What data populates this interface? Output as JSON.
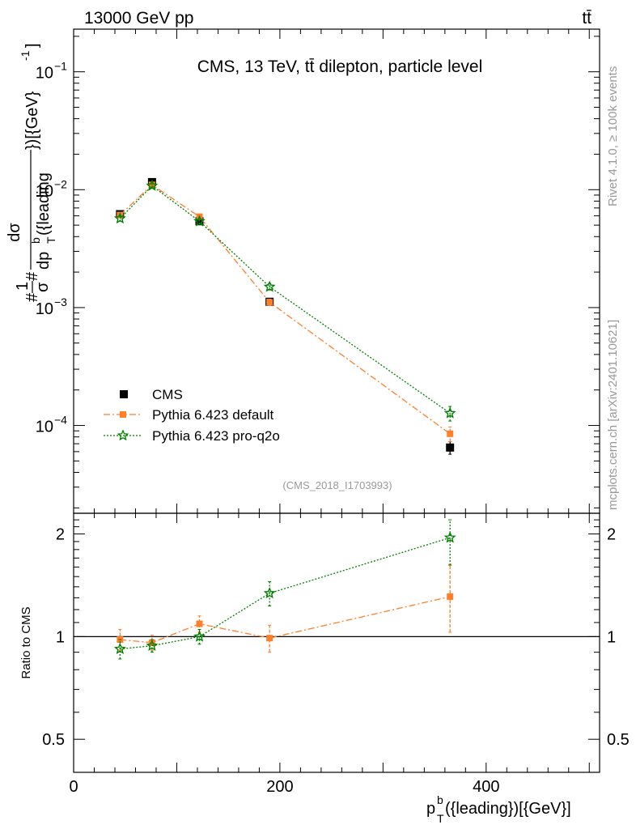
{
  "header": {
    "beam": "13000 GeV pp",
    "process": "tt̄",
    "analysis_title": "CMS, 13 TeV, tt̄ dilepton, particle level",
    "analysis_id": "(CMS_2018_I1703993)",
    "side_rivet": "Rivet 4.1.0, ≥ 100k events",
    "side_mcplots": "mcplots.cern.ch [arXiv:2401.10621]"
  },
  "colors": {
    "cms": "#000000",
    "default": "#ff7f2a",
    "proq2o": "#008000"
  },
  "chart_data": [
    {
      "type": "scatter",
      "panel": "main",
      "ylabel": "#1/σ# dσ / dp_T^b({leading}) [{GeV}^-1]",
      "ylabel_parts": {
        "prefix": "#",
        "one": "1",
        "sigma": "σ",
        "hash": "#",
        "num": "dσ",
        "den": "dp",
        "den_sup": "b",
        "den_sub": "T",
        "den_rest": "({leading",
        "suffix": "})[{GeV}",
        "suffix_sup": "-1",
        "suffix_end": "]"
      },
      "yscale": "log",
      "xlim": [
        0,
        510
      ],
      "ylim": [
        1.8e-05,
        0.23
      ],
      "y_ticks": [
        {
          "value": 0.1,
          "mantissa": "10",
          "exp": "−1"
        },
        {
          "value": 0.01,
          "mantissa": "10",
          "exp": "−2"
        },
        {
          "value": 0.001,
          "mantissa": "10",
          "exp": "−3"
        },
        {
          "value": 0.0001,
          "mantissa": "10",
          "exp": "−4"
        }
      ],
      "legend_position": "lower-left",
      "series": [
        {
          "name": "CMS",
          "key": "cms",
          "marker": "square",
          "x": [
            45,
            76,
            122,
            190,
            365
          ],
          "y": [
            0.0062,
            0.0116,
            0.0054,
            0.00112,
            6.5e-05
          ],
          "err": [
            0.0003,
            0.0005,
            0.0003,
            7e-05,
            8e-06
          ]
        },
        {
          "name": "Pythia 6.423 default",
          "key": "default",
          "marker": "square",
          "line": "dashdot",
          "x": [
            45,
            76,
            122,
            190,
            365
          ],
          "y": [
            0.0061,
            0.011,
            0.0059,
            0.00111,
            8.5e-05
          ],
          "err": [
            0.0003,
            0.0004,
            0.0003,
            7e-05,
            1.2e-05
          ]
        },
        {
          "name": "Pythia 6.423 pro-q2o",
          "key": "proq2o",
          "marker": "star",
          "line": "dotted",
          "x": [
            45,
            76,
            122,
            190,
            365
          ],
          "y": [
            0.0057,
            0.0108,
            0.0054,
            0.0015,
            0.000127
          ],
          "err": [
            0.0003,
            0.0004,
            0.0003,
            9e-05,
            1.8e-05
          ]
        }
      ]
    },
    {
      "type": "scatter",
      "panel": "ratio",
      "ylabel": "Ratio to CMS",
      "xlabel_parts": {
        "base": "p",
        "sub": "T",
        "sup": "b",
        "rest": "({leading})[{GeV}]"
      },
      "yscale": "log",
      "xlim": [
        0,
        510
      ],
      "ylim": [
        0.4,
        2.3
      ],
      "x_ticks": [
        "0",
        "200",
        "400"
      ],
      "x_tick_values": [
        0,
        200,
        400
      ],
      "y_ticks": [
        "0.5",
        "1",
        "2"
      ],
      "y_tick_values": [
        0.5,
        1,
        2
      ],
      "series": [
        {
          "name": "Pythia 6.423 default",
          "key": "default",
          "marker": "square",
          "line": "dashdot",
          "x": [
            45,
            76,
            122,
            190,
            365
          ],
          "y": [
            0.98,
            0.96,
            1.09,
            0.99,
            1.31
          ],
          "err_lo": [
            0.07,
            0.05,
            0.06,
            0.09,
            0.28
          ],
          "err_hi": [
            0.07,
            0.05,
            0.06,
            0.09,
            0.32
          ]
        },
        {
          "name": "Pythia 6.423 pro-q2o",
          "key": "proq2o",
          "marker": "star",
          "line": "dotted",
          "x": [
            45,
            76,
            122,
            190,
            365
          ],
          "y": [
            0.92,
            0.94,
            1.0,
            1.34,
            1.95
          ],
          "err_lo": [
            0.06,
            0.04,
            0.05,
            0.11,
            0.33
          ],
          "err_hi": [
            0.06,
            0.04,
            0.05,
            0.11,
            0.25
          ]
        }
      ]
    }
  ]
}
